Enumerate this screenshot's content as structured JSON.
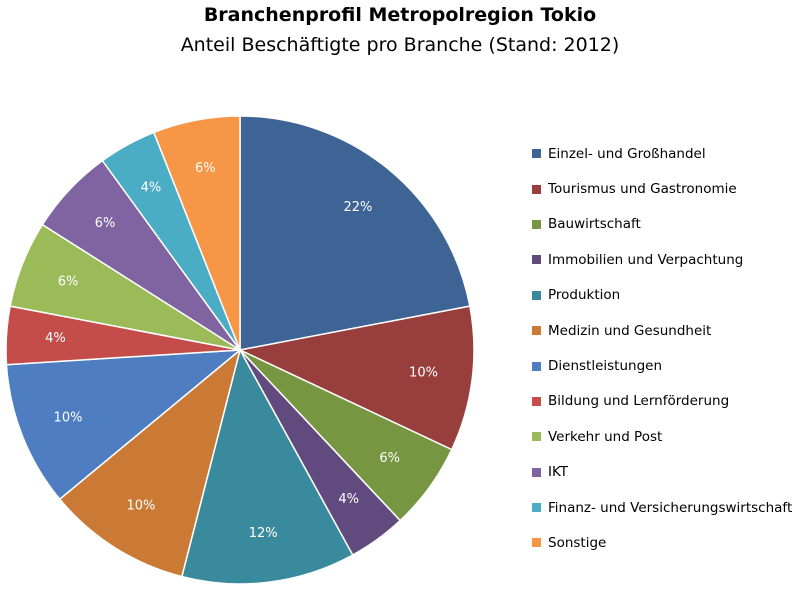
{
  "chart_data": {
    "type": "pie",
    "title": "Branchenprofil Metropolregion Tokio",
    "subtitle": "Anteil Beschäftigte pro Branche (Stand: 2012)",
    "legend_position": "right",
    "slices": [
      {
        "name": "Einzel- und Großhandel",
        "value": 22,
        "label": "22%",
        "color": "#3E6395"
      },
      {
        "name": "Tourismus und Gastronomie",
        "value": 10,
        "label": "10%",
        "color": "#983E3C"
      },
      {
        "name": "Bauwirtschaft",
        "value": 6,
        "label": "6%",
        "color": "#779642"
      },
      {
        "name": "Immobilien und Verpachtung",
        "value": 4,
        "label": "4%",
        "color": "#614B7E"
      },
      {
        "name": "Produktion",
        "value": 12,
        "label": "12%",
        "color": "#3A8A9E"
      },
      {
        "name": "Medizin und Gesundheit",
        "value": 10,
        "label": "10%",
        "color": "#CB7A35"
      },
      {
        "name": "Dienstleistungen",
        "value": 10,
        "label": "10%",
        "color": "#4E7EC1"
      },
      {
        "name": "Bildung und Lernförderung",
        "value": 4,
        "label": "4%",
        "color": "#C44D4A"
      },
      {
        "name": "Verkehr und Post",
        "value": 6,
        "label": "6%",
        "color": "#9BBB59"
      },
      {
        "name": "IKT",
        "value": 6,
        "label": "6%",
        "color": "#8064A2"
      },
      {
        "name": "Finanz- und Versicherungswirtschaft",
        "value": 4,
        "label": "4%",
        "color": "#4BACC6"
      },
      {
        "name": "Sonstige",
        "value": 6,
        "label": "6%",
        "color": "#F79646"
      }
    ]
  }
}
